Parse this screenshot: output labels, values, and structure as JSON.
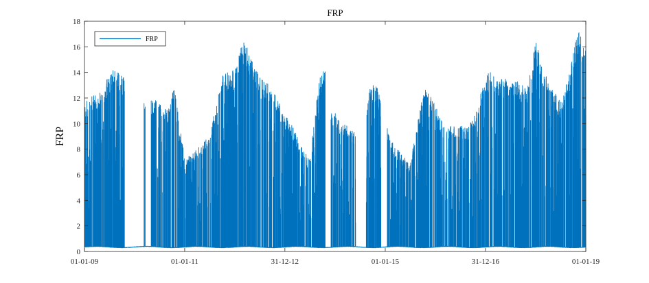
{
  "chart_data": {
    "type": "line",
    "title": "FRP",
    "xlabel": "",
    "ylabel": "FRP",
    "xlim": [
      "2009-01-01",
      "2019-01-01"
    ],
    "ylim": [
      0,
      18
    ],
    "xticks": [
      "2009-01-01",
      "2011-01-01",
      "2012-12-31",
      "2015-01-01",
      "2016-12-31",
      "2019-01-01"
    ],
    "xticklabels": [
      "01-01-09",
      "01-01-11",
      "31-12-12",
      "01-01-15",
      "31-12-16",
      "01-01-19"
    ],
    "yticks": [
      0,
      2,
      4,
      6,
      8,
      10,
      12,
      14,
      16,
      18
    ],
    "grid": false,
    "legend": {
      "placement": "top-left",
      "entries": [
        "FRP"
      ]
    },
    "line_color": "#0072BD",
    "baseline": 0.35,
    "series": [
      {
        "name": "FRP",
        "envelope": {
          "x": [
            "2009-01-01",
            "2009-03-01",
            "2009-05-01",
            "2009-06-15",
            "2009-08-01",
            "2009-09-01",
            "2009-10-01",
            "2010-03-15",
            "2010-05-01",
            "2010-07-01",
            "2010-09-01",
            "2010-10-15",
            "2010-11-01",
            "2011-01-01",
            "2011-03-01",
            "2011-06-01",
            "2011-08-01",
            "2011-10-01",
            "2012-01-01",
            "2012-03-01",
            "2012-05-01",
            "2012-07-01",
            "2012-09-01",
            "2012-11-01",
            "2013-01-01",
            "2013-03-01",
            "2013-05-01",
            "2013-07-01",
            "2013-09-01",
            "2013-10-15",
            "2013-12-01",
            "2014-03-01",
            "2014-05-01",
            "2014-07-01",
            "2014-09-01",
            "2014-11-01",
            "2015-01-01",
            "2015-03-01",
            "2015-05-01",
            "2015-07-01",
            "2015-09-01",
            "2015-11-01",
            "2016-01-01",
            "2016-03-01",
            "2016-05-01",
            "2016-07-01",
            "2016-09-01",
            "2016-11-01",
            "2017-01-01",
            "2017-03-01",
            "2017-05-01",
            "2017-07-01",
            "2017-09-01",
            "2017-11-01",
            "2018-01-01",
            "2018-03-01",
            "2018-05-01",
            "2018-07-01",
            "2018-09-01",
            "2018-11-01",
            "2018-12-20"
          ],
          "y": [
            11.5,
            12.0,
            12.3,
            13.3,
            14.0,
            13.8,
            13.5,
            11.7,
            11.8,
            11.5,
            11.0,
            13.0,
            11.5,
            7.1,
            7.5,
            8.5,
            10.5,
            13.5,
            14.0,
            16.2,
            15.0,
            13.3,
            13.0,
            11.8,
            10.5,
            9.5,
            8.0,
            7.0,
            13.0,
            14.2,
            11.0,
            9.8,
            9.4,
            8.5,
            12.5,
            13.0,
            10.0,
            8.2,
            7.5,
            6.7,
            10.5,
            13.2,
            11.2,
            9.6,
            9.6,
            9.6,
            9.6,
            11.0,
            13.8,
            13.7,
            13.2,
            13.3,
            13.0,
            12.5,
            16.3,
            14.0,
            12.5,
            11.5,
            13.5,
            17.0,
            16.0
          ]
        },
        "gaps": [
          [
            "2009-10-20",
            "2010-03-10"
          ],
          [
            "2010-03-20",
            "2010-05-01"
          ],
          [
            "2013-10-25",
            "2013-12-01"
          ],
          [
            "2014-06-01",
            "2014-08-15"
          ],
          [
            "2014-12-01",
            "2015-01-15"
          ]
        ]
      }
    ]
  }
}
